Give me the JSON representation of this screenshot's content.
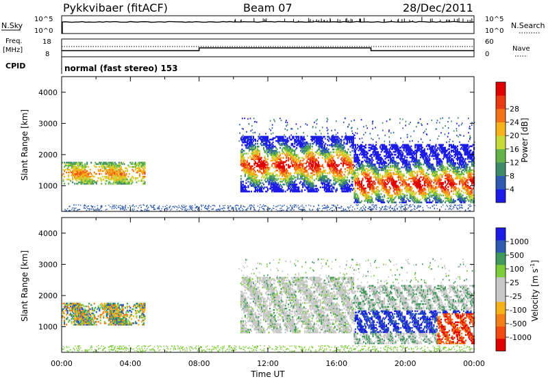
{
  "header": {
    "radar": "Pykkvibaer (fitACF)",
    "beam": "Beam 07",
    "date": "28/Dec/2011"
  },
  "status": {
    "nsky_label": "N.Sky",
    "nsky_ticks": [
      "10^5",
      "10^0"
    ],
    "nsearch_label": "N.Search",
    "nsearch_ticks": [
      "10^5",
      "10^0"
    ],
    "freq_label_1": "Freq.",
    "freq_label_2": "[MHz]",
    "freq_ticks": [
      "18",
      "8"
    ],
    "nave_label": "Nave",
    "nave_ticks": [
      "60",
      "0"
    ],
    "cpid_label": "CPID",
    "cpid_text": "normal (fast stereo) 153"
  },
  "chart_data": [
    {
      "type": "heatmap",
      "title": "",
      "xlabel": "Time UT",
      "ylabel": "Slant Range [km]",
      "xlim": [
        0,
        24
      ],
      "ylim": [
        180,
        4500
      ],
      "x_tick_labels": [
        "00:00",
        "04:00",
        "08:00",
        "12:00",
        "16:00",
        "20:00",
        "00:00"
      ],
      "y_tick_labels": [
        "1000",
        "2000",
        "3000",
        "4000"
      ],
      "y_ticks": [
        1000,
        2000,
        3000,
        4000
      ],
      "colorbar": {
        "label": "Power [dB]",
        "colors": [
          "#1c1ce6",
          "#2e5bb0",
          "#3f8a6b",
          "#62b34a",
          "#c9d93a",
          "#f5b21a",
          "#f27418",
          "#ea3a12",
          "#e00000"
        ],
        "tick_labels": [
          "4",
          "8",
          "12",
          "16",
          "20",
          "24",
          "28"
        ]
      },
      "echo_regions": [
        {
          "t": [
            0.0,
            4.8
          ],
          "r": [
            1050,
            1750
          ],
          "peak_range_km": 1380
        },
        {
          "t": [
            10.4,
            17.0
          ],
          "r": [
            800,
            2600
          ],
          "peak_range_km": 1650
        },
        {
          "t": [
            17.0,
            24.0
          ],
          "r": [
            450,
            2300
          ],
          "peak_range_km": 1050
        }
      ]
    },
    {
      "type": "heatmap",
      "title": "",
      "xlabel": "Time UT",
      "ylabel": "Slant Range [km]",
      "xlim": [
        0,
        24
      ],
      "ylim": [
        180,
        4500
      ],
      "x_tick_labels": [
        "00:00",
        "04:00",
        "08:00",
        "12:00",
        "16:00",
        "20:00",
        "00:00"
      ],
      "y_tick_labels": [
        "1000",
        "2000",
        "3000",
        "4000"
      ],
      "y_ticks": [
        1000,
        2000,
        3000,
        4000
      ],
      "colorbar": {
        "label": "Velocity [m s^-1]",
        "colors": [
          "#e00000",
          "#f24a10",
          "#f27f18",
          "#f5b21a",
          "#c8c8c8",
          "#c8c8c8",
          "#7dcd3a",
          "#3f9a5b",
          "#2e5bb0",
          "#1c1ce6"
        ],
        "tick_labels": [
          "-1000",
          "-500",
          "-100",
          "-25",
          "25",
          "100",
          "500",
          "1000"
        ]
      },
      "echo_regions": [
        {
          "t": [
            0.0,
            4.8
          ],
          "r": [
            1050,
            1750
          ]
        },
        {
          "t": [
            10.4,
            17.0
          ],
          "r": [
            800,
            2600
          ]
        },
        {
          "t": [
            17.0,
            24.0
          ],
          "r": [
            450,
            2300
          ]
        }
      ]
    }
  ]
}
